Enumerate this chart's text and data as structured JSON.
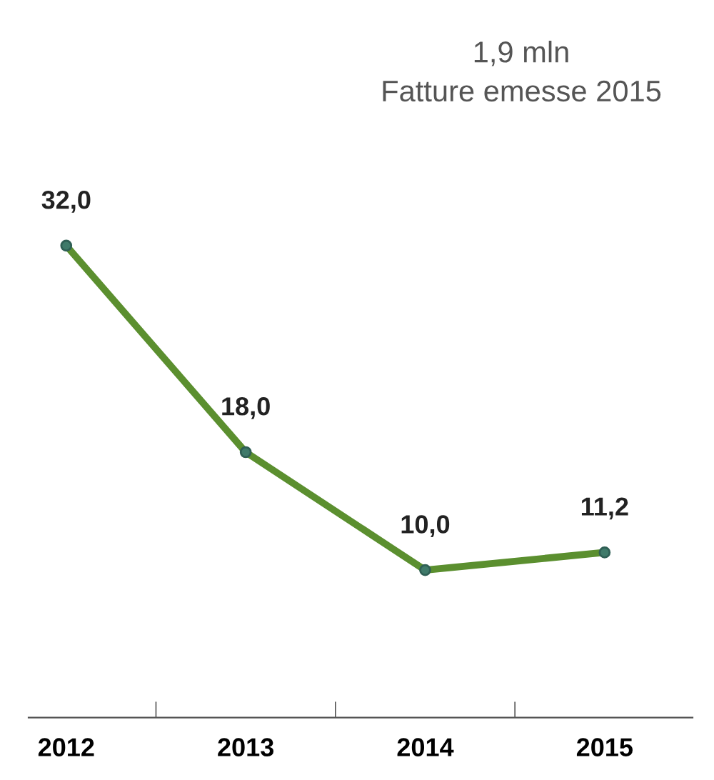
{
  "chart_data": {
    "type": "line",
    "title": "1,9 mln",
    "subtitle": "Fatture emesse 2015",
    "categories": [
      "2012",
      "2013",
      "2014",
      "2015"
    ],
    "series": [
      {
        "color": "#5b8f2f",
        "values": [
          32.0,
          18.0,
          10.0,
          11.2
        ],
        "value_labels": [
          "32,0",
          "18,0",
          "10,0",
          "11,2"
        ]
      }
    ],
    "marker": "circle",
    "line_style": "solid",
    "grid": false,
    "legend": false
  }
}
